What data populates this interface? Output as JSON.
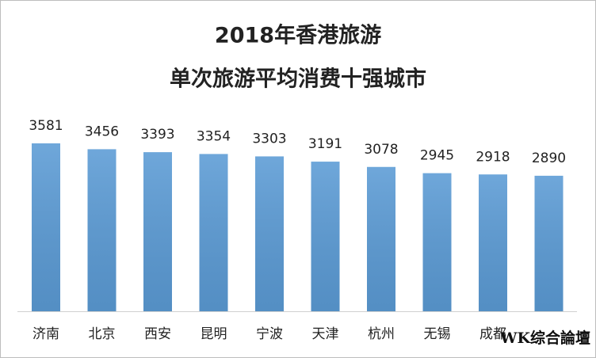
{
  "chart_data": {
    "type": "bar",
    "title": [
      "2018年香港旅游",
      "单次旅游平均消费十强城市"
    ],
    "categories": [
      "济南",
      "北京",
      "西安",
      "昆明",
      "宁波",
      "天津",
      "杭州",
      "无锡",
      "成都",
      null
    ],
    "values": [
      3581,
      3456,
      3393,
      3354,
      3303,
      3191,
      3078,
      2945,
      2918,
      2890
    ],
    "color": "#5b9bd5",
    "watermark": "WK综合論壇"
  }
}
